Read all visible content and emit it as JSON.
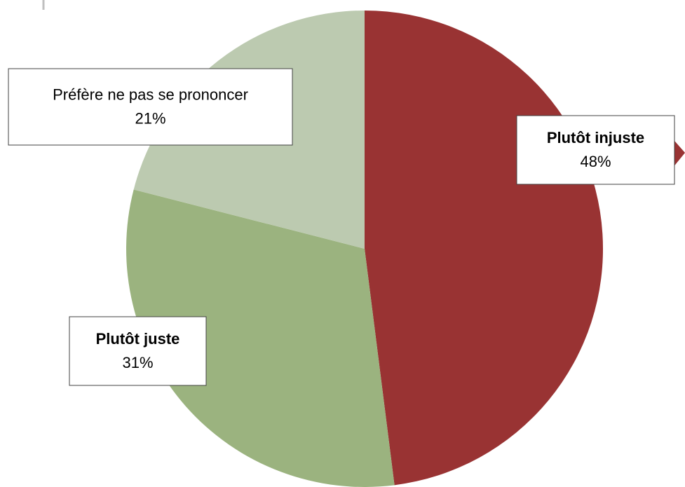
{
  "chart_data": {
    "type": "pie",
    "categories": [
      "Plutôt injuste",
      "Plutôt juste",
      "Préfère ne pas se prononcer"
    ],
    "values": [
      48,
      31,
      21
    ],
    "value_labels": [
      "48%",
      "31%",
      "21%"
    ],
    "colors": [
      "#993333",
      "#9bb37f",
      "#bccab0"
    ]
  }
}
